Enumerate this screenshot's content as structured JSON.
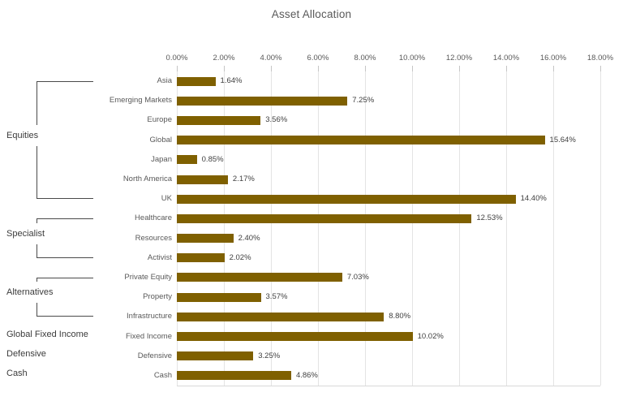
{
  "chart_data": {
    "type": "bar",
    "orientation": "horizontal",
    "title": "Asset Allocation",
    "xlabel": "",
    "ylabel": "",
    "xlim": [
      0,
      18
    ],
    "x_tick_values": [
      0,
      2,
      4,
      6,
      8,
      10,
      12,
      14,
      16,
      18
    ],
    "x_tick_labels": [
      "0.00%",
      "2.00%",
      "4.00%",
      "6.00%",
      "8.00%",
      "10.00%",
      "12.00%",
      "14.00%",
      "16.00%",
      "18.00%"
    ],
    "grid": true,
    "legend": false,
    "categories": [
      "Asia",
      "Emerging Markets",
      "Europe",
      "Global",
      "Japan",
      "North America",
      "UK",
      "Healthcare",
      "Resources",
      "Activist",
      "Private Equity",
      "Property",
      "Infrastructure",
      "Fixed Income",
      "Defensive",
      "Cash"
    ],
    "values": [
      1.64,
      7.25,
      3.56,
      15.64,
      0.85,
      2.17,
      14.4,
      12.53,
      2.4,
      2.02,
      7.03,
      3.57,
      8.8,
      10.02,
      3.25,
      4.86
    ],
    "value_labels": [
      "1.64%",
      "7.25%",
      "3.56%",
      "15.64%",
      "0.85%",
      "2.17%",
      "14.40%",
      "12.53%",
      "2.40%",
      "2.02%",
      "7.03%",
      "3.57%",
      "8.80%",
      "10.02%",
      "3.25%",
      "4.86%"
    ],
    "groups": [
      {
        "label": "Equities",
        "first_row": 0,
        "last_row": 6,
        "bracket": true
      },
      {
        "label": "Specialist",
        "first_row": 7,
        "last_row": 9,
        "bracket": true
      },
      {
        "label": "Alternatives",
        "first_row": 10,
        "last_row": 12,
        "bracket": true
      },
      {
        "label": "Global Fixed Income",
        "first_row": 13,
        "last_row": 13,
        "bracket": false
      },
      {
        "label": "Defensive",
        "first_row": 14,
        "last_row": 14,
        "bracket": false
      },
      {
        "label": "Cash",
        "first_row": 15,
        "last_row": 15,
        "bracket": false
      }
    ],
    "colors": {
      "bar": "#7F6000",
      "title_text": "#595959",
      "axis_text": "#595959",
      "value_text": "#404040",
      "gridline": "#E4E4E4"
    }
  }
}
